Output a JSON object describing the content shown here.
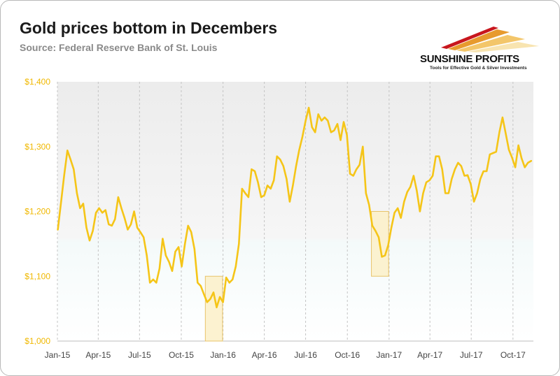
{
  "title": "Gold prices bottom in Decembers",
  "subtitle": "Source: Federal Reserve Bank of St. Louis",
  "logo": {
    "name": "SUNSHINE PROFITS",
    "tagline": "Tools for Effective Gold & Silver Investments",
    "icon": "sunshine-swoosh-logo"
  },
  "colors": {
    "line": "#f5c518",
    "highlight_fill": "#fbf0c8",
    "highlight_stroke": "#e8c36a",
    "ytick": "#f0b800"
  },
  "chart_data": {
    "type": "line",
    "title": "Gold prices bottom in Decembers",
    "subtitle": "Source: Federal Reserve Bank of St. Louis",
    "xlabel": "",
    "ylabel": "",
    "ylim": [
      1000,
      1400
    ],
    "yticks": [
      1000,
      1100,
      1200,
      1300,
      1400
    ],
    "ytick_labels": [
      "$1,000",
      "$1,100",
      "$1,200",
      "$1,300",
      "$1,400"
    ],
    "xticks": [
      "2015-01-01",
      "2015-04-01",
      "2015-07-01",
      "2015-10-01",
      "2016-01-01",
      "2016-04-01",
      "2016-07-01",
      "2016-10-01",
      "2017-01-01",
      "2017-04-01",
      "2017-07-01",
      "2017-10-01"
    ],
    "xtick_labels": [
      "Jan-15",
      "Apr-15",
      "Jul-15",
      "Oct-15",
      "Jan-16",
      "Apr-16",
      "Jul-16",
      "Oct-16",
      "Jan-17",
      "Apr-17",
      "Jul-17",
      "Oct-17"
    ],
    "xlim": [
      "2015-01-01",
      "2017-11-15"
    ],
    "grid": "vertical-dashed",
    "highlights": [
      {
        "x_start": "2015-11-23",
        "x_end": "2015-12-31",
        "y_start": 1000,
        "y_end": 1100
      },
      {
        "x_start": "2016-11-23",
        "x_end": "2016-12-31",
        "y_start": 1100,
        "y_end": 1200
      }
    ],
    "series": [
      {
        "values": [
          [
            "2015-01-02",
            1172
          ],
          [
            "2015-01-09",
            1214
          ],
          [
            "2015-01-16",
            1256
          ],
          [
            "2015-01-23",
            1294
          ],
          [
            "2015-01-30",
            1280
          ],
          [
            "2015-02-06",
            1265
          ],
          [
            "2015-02-13",
            1228
          ],
          [
            "2015-02-20",
            1205
          ],
          [
            "2015-02-27",
            1212
          ],
          [
            "2015-03-06",
            1175
          ],
          [
            "2015-03-13",
            1155
          ],
          [
            "2015-03-20",
            1170
          ],
          [
            "2015-03-27",
            1198
          ],
          [
            "2015-04-03",
            1205
          ],
          [
            "2015-04-10",
            1198
          ],
          [
            "2015-04-17",
            1202
          ],
          [
            "2015-04-24",
            1180
          ],
          [
            "2015-05-01",
            1178
          ],
          [
            "2015-05-08",
            1188
          ],
          [
            "2015-05-15",
            1222
          ],
          [
            "2015-05-22",
            1205
          ],
          [
            "2015-05-29",
            1190
          ],
          [
            "2015-06-05",
            1172
          ],
          [
            "2015-06-12",
            1180
          ],
          [
            "2015-06-19",
            1200
          ],
          [
            "2015-06-26",
            1175
          ],
          [
            "2015-07-03",
            1168
          ],
          [
            "2015-07-10",
            1160
          ],
          [
            "2015-07-17",
            1132
          ],
          [
            "2015-07-24",
            1090
          ],
          [
            "2015-07-31",
            1095
          ],
          [
            "2015-08-07",
            1090
          ],
          [
            "2015-08-14",
            1112
          ],
          [
            "2015-08-21",
            1158
          ],
          [
            "2015-08-28",
            1132
          ],
          [
            "2015-09-04",
            1122
          ],
          [
            "2015-09-11",
            1108
          ],
          [
            "2015-09-18",
            1138
          ],
          [
            "2015-09-25",
            1145
          ],
          [
            "2015-10-02",
            1115
          ],
          [
            "2015-10-09",
            1150
          ],
          [
            "2015-10-16",
            1178
          ],
          [
            "2015-10-23",
            1168
          ],
          [
            "2015-10-30",
            1142
          ],
          [
            "2015-11-06",
            1090
          ],
          [
            "2015-11-13",
            1085
          ],
          [
            "2015-11-20",
            1072
          ],
          [
            "2015-11-27",
            1060
          ],
          [
            "2015-12-04",
            1065
          ],
          [
            "2015-12-11",
            1075
          ],
          [
            "2015-12-18",
            1052
          ],
          [
            "2015-12-25",
            1068
          ],
          [
            "2016-01-01",
            1060
          ],
          [
            "2016-01-08",
            1098
          ],
          [
            "2016-01-15",
            1090
          ],
          [
            "2016-01-22",
            1095
          ],
          [
            "2016-01-29",
            1115
          ],
          [
            "2016-02-05",
            1150
          ],
          [
            "2016-02-12",
            1235
          ],
          [
            "2016-02-19",
            1228
          ],
          [
            "2016-02-26",
            1222
          ],
          [
            "2016-03-04",
            1265
          ],
          [
            "2016-03-11",
            1262
          ],
          [
            "2016-03-18",
            1245
          ],
          [
            "2016-03-25",
            1222
          ],
          [
            "2016-04-01",
            1225
          ],
          [
            "2016-04-08",
            1240
          ],
          [
            "2016-04-15",
            1235
          ],
          [
            "2016-04-22",
            1248
          ],
          [
            "2016-04-29",
            1285
          ],
          [
            "2016-05-06",
            1280
          ],
          [
            "2016-05-13",
            1270
          ],
          [
            "2016-05-20",
            1250
          ],
          [
            "2016-05-27",
            1215
          ],
          [
            "2016-06-03",
            1240
          ],
          [
            "2016-06-10",
            1270
          ],
          [
            "2016-06-17",
            1295
          ],
          [
            "2016-06-24",
            1315
          ],
          [
            "2016-07-01",
            1340
          ],
          [
            "2016-07-08",
            1360
          ],
          [
            "2016-07-15",
            1330
          ],
          [
            "2016-07-22",
            1322
          ],
          [
            "2016-07-29",
            1350
          ],
          [
            "2016-08-05",
            1340
          ],
          [
            "2016-08-12",
            1345
          ],
          [
            "2016-08-19",
            1340
          ],
          [
            "2016-08-26",
            1322
          ],
          [
            "2016-09-02",
            1325
          ],
          [
            "2016-09-09",
            1335
          ],
          [
            "2016-09-16",
            1310
          ],
          [
            "2016-09-23",
            1338
          ],
          [
            "2016-09-30",
            1318
          ],
          [
            "2016-10-07",
            1258
          ],
          [
            "2016-10-14",
            1255
          ],
          [
            "2016-10-21",
            1265
          ],
          [
            "2016-10-28",
            1272
          ],
          [
            "2016-11-04",
            1300
          ],
          [
            "2016-11-11",
            1228
          ],
          [
            "2016-11-18",
            1210
          ],
          [
            "2016-11-25",
            1178
          ],
          [
            "2016-12-02",
            1170
          ],
          [
            "2016-12-09",
            1160
          ],
          [
            "2016-12-16",
            1130
          ],
          [
            "2016-12-23",
            1132
          ],
          [
            "2016-12-30",
            1148
          ],
          [
            "2017-01-06",
            1175
          ],
          [
            "2017-01-13",
            1198
          ],
          [
            "2017-01-20",
            1205
          ],
          [
            "2017-01-27",
            1190
          ],
          [
            "2017-02-03",
            1215
          ],
          [
            "2017-02-10",
            1230
          ],
          [
            "2017-02-17",
            1238
          ],
          [
            "2017-02-24",
            1255
          ],
          [
            "2017-03-03",
            1232
          ],
          [
            "2017-03-10",
            1200
          ],
          [
            "2017-03-17",
            1228
          ],
          [
            "2017-03-24",
            1245
          ],
          [
            "2017-03-31",
            1248
          ],
          [
            "2017-04-07",
            1255
          ],
          [
            "2017-04-14",
            1285
          ],
          [
            "2017-04-21",
            1285
          ],
          [
            "2017-04-28",
            1265
          ],
          [
            "2017-05-05",
            1228
          ],
          [
            "2017-05-12",
            1228
          ],
          [
            "2017-05-19",
            1250
          ],
          [
            "2017-05-26",
            1265
          ],
          [
            "2017-06-02",
            1275
          ],
          [
            "2017-06-09",
            1270
          ],
          [
            "2017-06-16",
            1255
          ],
          [
            "2017-06-23",
            1256
          ],
          [
            "2017-06-30",
            1242
          ],
          [
            "2017-07-07",
            1215
          ],
          [
            "2017-07-14",
            1228
          ],
          [
            "2017-07-21",
            1250
          ],
          [
            "2017-07-28",
            1262
          ],
          [
            "2017-08-04",
            1262
          ],
          [
            "2017-08-11",
            1288
          ],
          [
            "2017-08-18",
            1290
          ],
          [
            "2017-08-25",
            1292
          ],
          [
            "2017-09-01",
            1322
          ],
          [
            "2017-09-08",
            1345
          ],
          [
            "2017-09-15",
            1320
          ],
          [
            "2017-09-22",
            1295
          ],
          [
            "2017-09-29",
            1283
          ],
          [
            "2017-10-06",
            1268
          ],
          [
            "2017-10-13",
            1302
          ],
          [
            "2017-10-20",
            1282
          ],
          [
            "2017-10-27",
            1268
          ],
          [
            "2017-11-03",
            1275
          ],
          [
            "2017-11-10",
            1278
          ]
        ]
      }
    ]
  }
}
